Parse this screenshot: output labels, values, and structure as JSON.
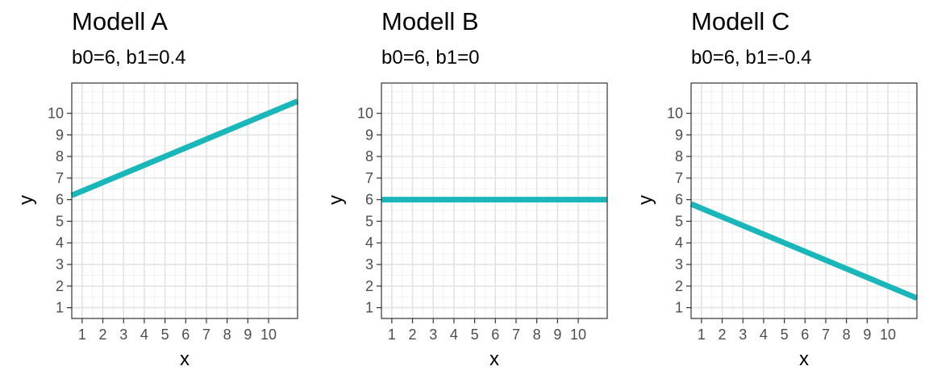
{
  "chart_data": [
    {
      "type": "line",
      "title": "Modell A",
      "subtitle": "b0=6, b1=0.4",
      "xlabel": "x",
      "ylabel": "y",
      "x_ticks": [
        1,
        2,
        3,
        4,
        5,
        6,
        7,
        8,
        9,
        10
      ],
      "y_ticks": [
        1,
        2,
        3,
        4,
        5,
        6,
        7,
        8,
        9,
        10
      ],
      "xlim": [
        0.5,
        11.4
      ],
      "ylim": [
        0.5,
        11.4
      ],
      "grid": true,
      "series": [
        {
          "intercept": 6,
          "slope": 0.4,
          "x": [
            0.5,
            11.4
          ],
          "y": [
            6.2,
            10.56
          ]
        }
      ],
      "line_color": "#1AB7BA"
    },
    {
      "type": "line",
      "title": "Modell B",
      "subtitle": "b0=6, b1=0",
      "xlabel": "x",
      "ylabel": "y",
      "x_ticks": [
        1,
        2,
        3,
        4,
        5,
        6,
        7,
        8,
        9,
        10
      ],
      "y_ticks": [
        1,
        2,
        3,
        4,
        5,
        6,
        7,
        8,
        9,
        10
      ],
      "xlim": [
        0.5,
        11.4
      ],
      "ylim": [
        0.5,
        11.4
      ],
      "grid": true,
      "series": [
        {
          "intercept": 6,
          "slope": 0,
          "x": [
            0.5,
            11.4
          ],
          "y": [
            6,
            6
          ]
        }
      ],
      "line_color": "#1AB7BA"
    },
    {
      "type": "line",
      "title": "Modell C",
      "subtitle": "b0=6, b1=-0.4",
      "xlabel": "x",
      "ylabel": "y",
      "x_ticks": [
        1,
        2,
        3,
        4,
        5,
        6,
        7,
        8,
        9,
        10
      ],
      "y_ticks": [
        1,
        2,
        3,
        4,
        5,
        6,
        7,
        8,
        9,
        10
      ],
      "xlim": [
        0.5,
        11.4
      ],
      "ylim": [
        0.5,
        11.4
      ],
      "grid": true,
      "series": [
        {
          "intercept": 6,
          "slope": -0.4,
          "x": [
            0.5,
            11.4
          ],
          "y": [
            5.8,
            1.44
          ]
        }
      ],
      "line_color": "#1AB7BA"
    }
  ]
}
